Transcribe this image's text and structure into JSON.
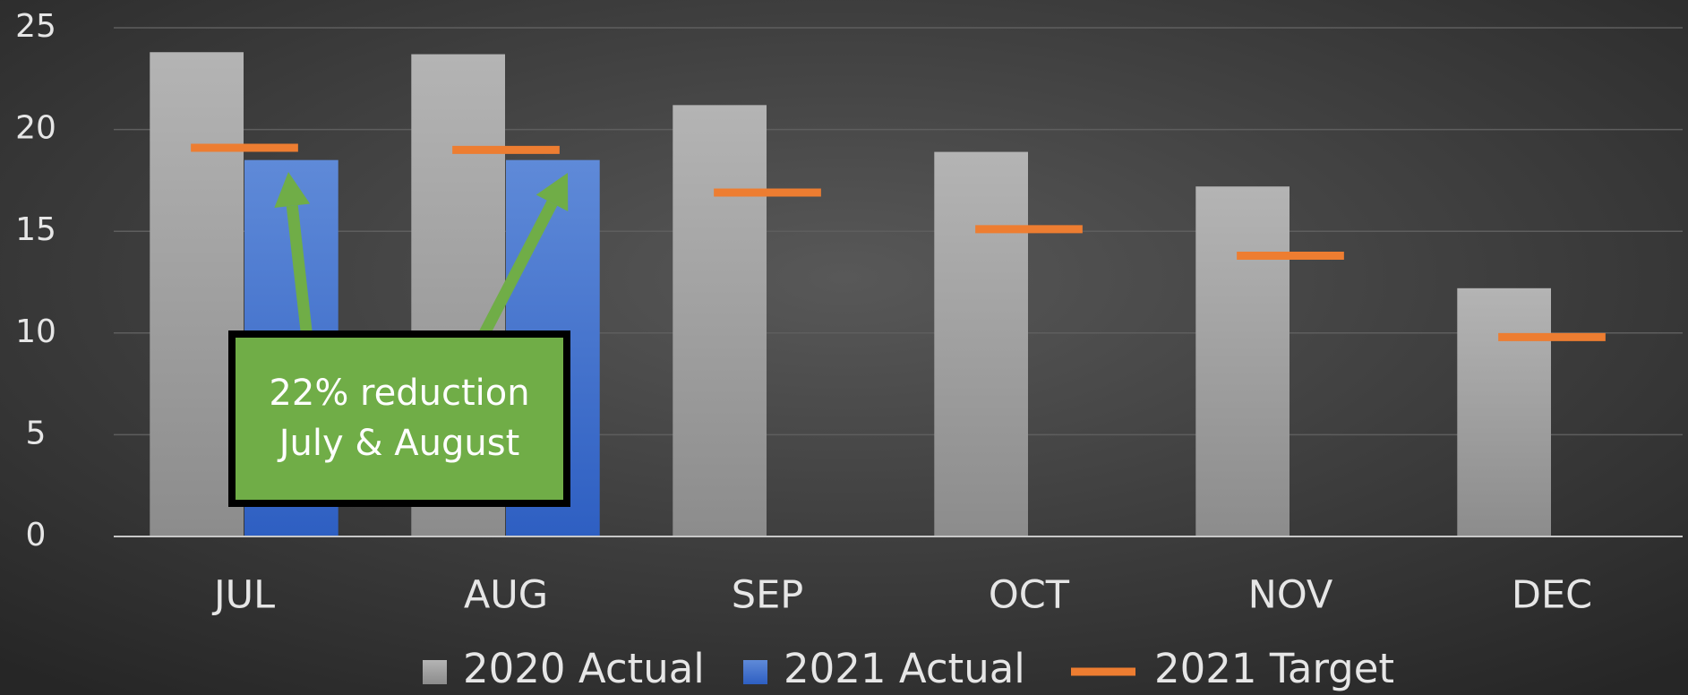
{
  "chart_data": {
    "type": "bar",
    "categories": [
      "JUL",
      "AUG",
      "SEP",
      "OCT",
      "NOV",
      "DEC"
    ],
    "series": [
      {
        "name": "2020 Actual",
        "color": "#a6a6a6",
        "values": [
          23.8,
          23.7,
          21.2,
          18.9,
          17.2,
          12.2
        ]
      },
      {
        "name": "2021 Actual",
        "color": "#4472c4",
        "values": [
          18.5,
          18.5,
          null,
          null,
          null,
          null
        ]
      },
      {
        "name": "2021 Target",
        "color": "#ed7d31",
        "mark": "dash",
        "values": [
          19.1,
          19.0,
          16.9,
          15.1,
          13.8,
          9.8
        ]
      }
    ],
    "ylim": [
      0,
      25
    ],
    "yticks": [
      0,
      5,
      10,
      15,
      20,
      25
    ],
    "grid": true,
    "legend": "bottom",
    "annotation": {
      "lines": [
        "22% reduction",
        "July & August"
      ],
      "color": "#70ad47"
    }
  }
}
